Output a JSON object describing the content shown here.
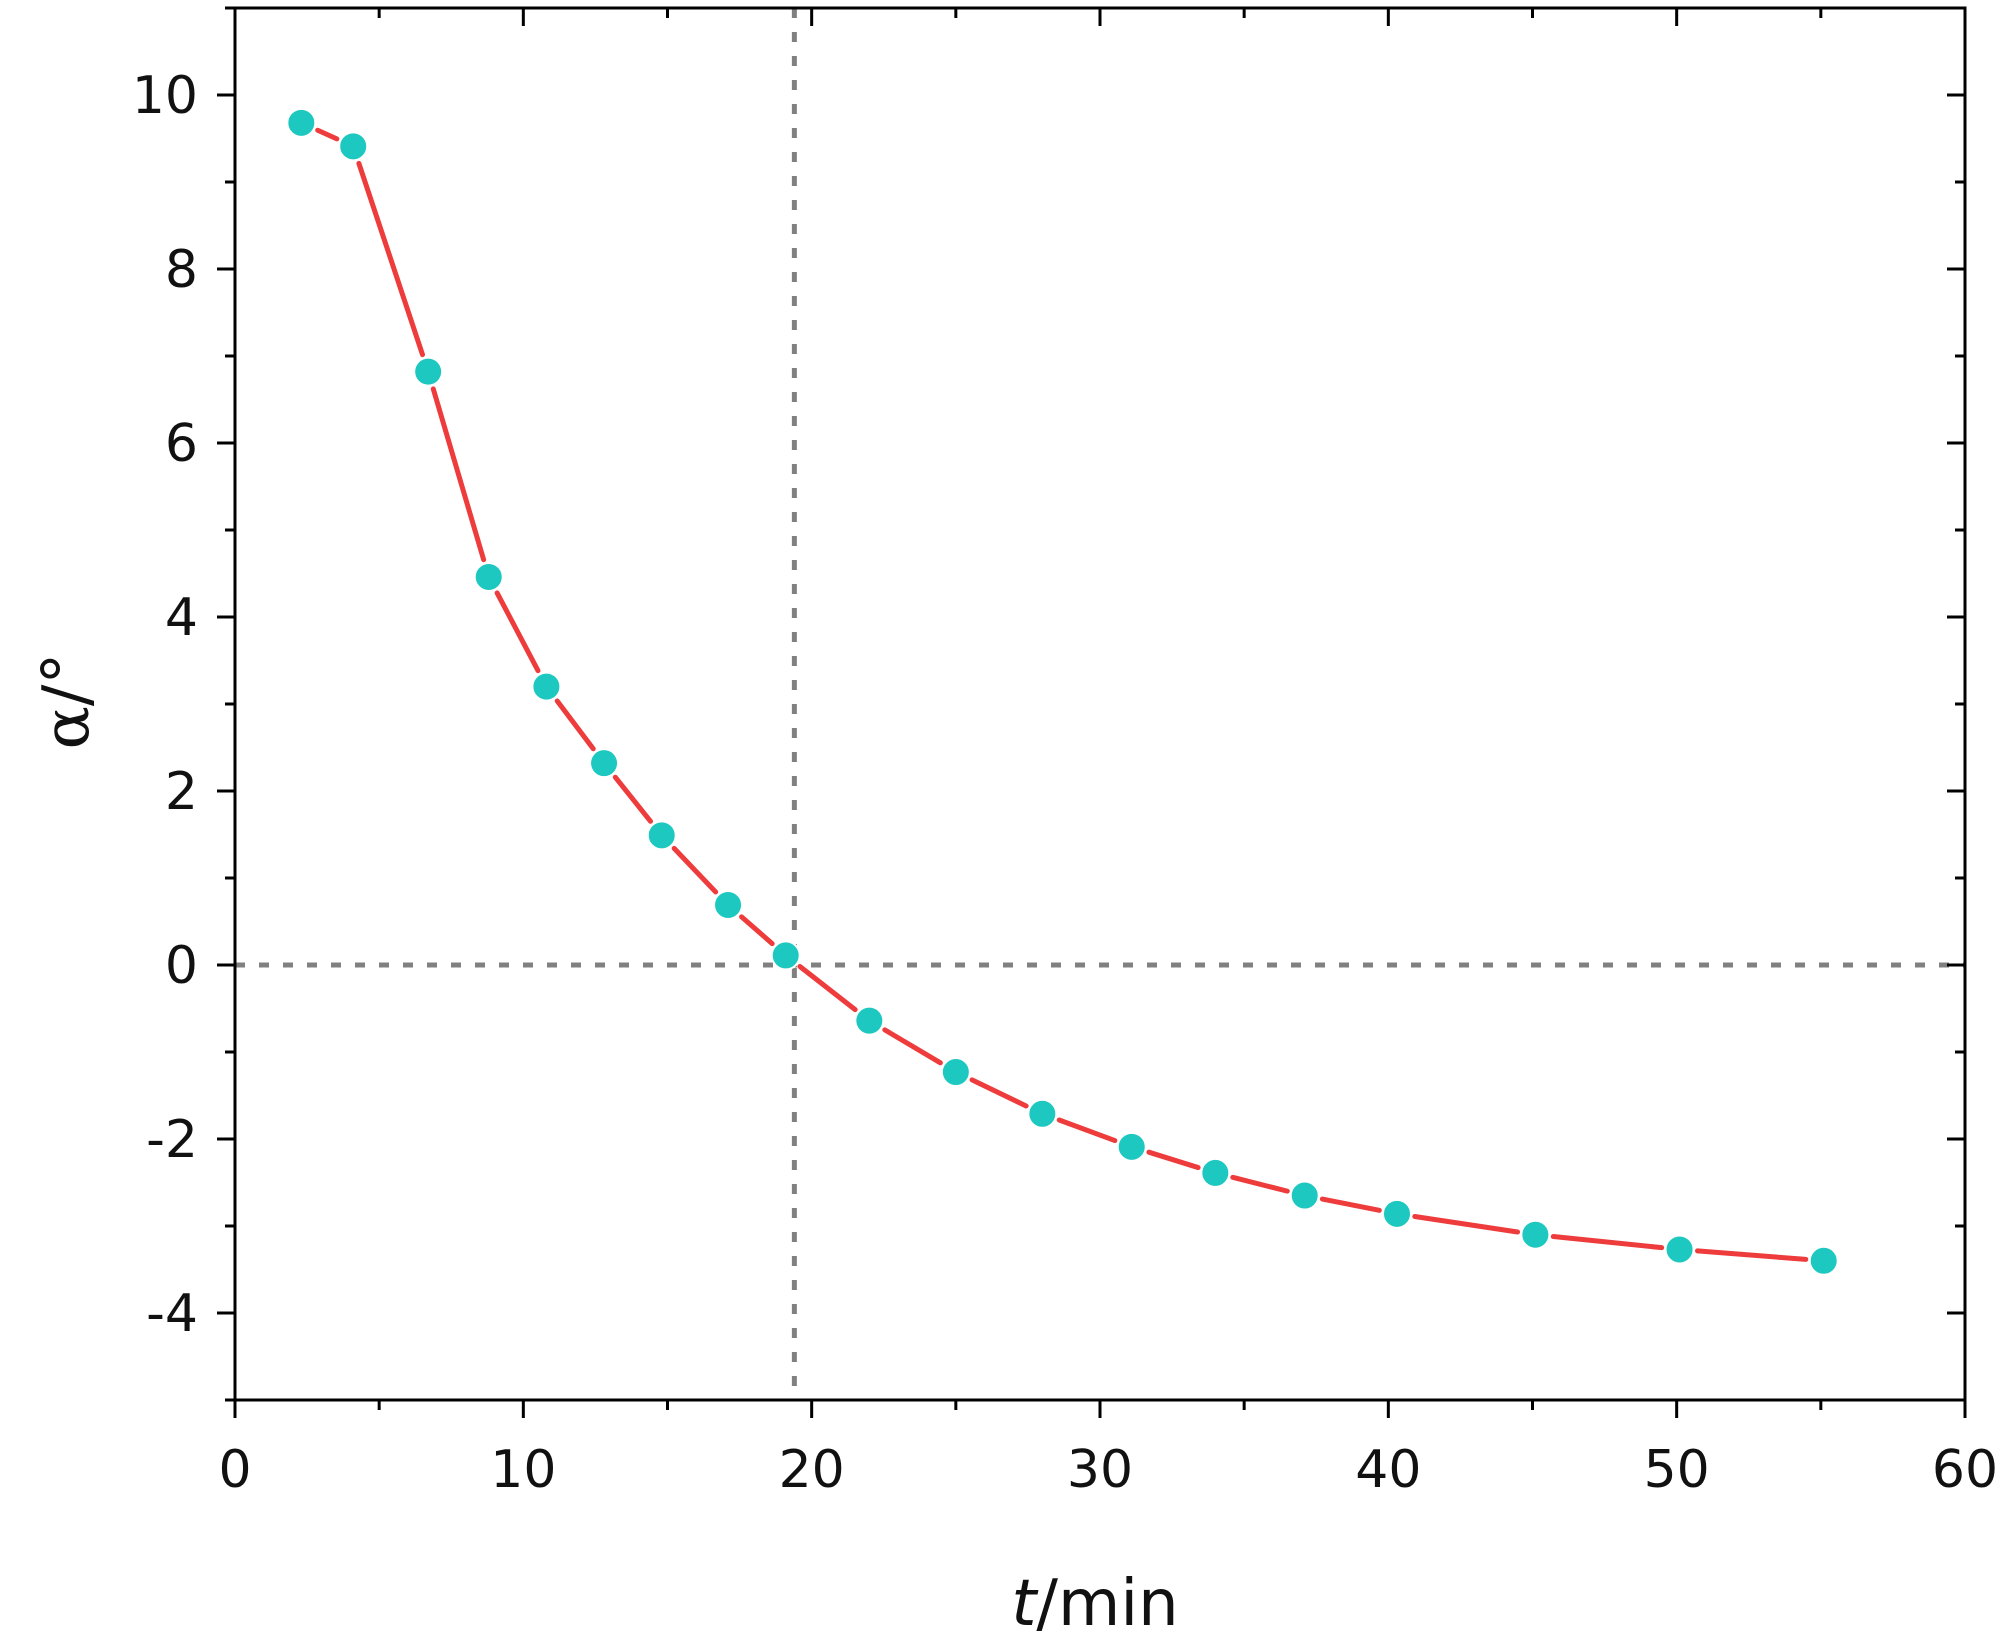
{
  "chart_data": {
    "type": "scatter",
    "xlabel": {
      "italic": "t",
      "rest": "/min"
    },
    "ylabel": {
      "symbol": "α",
      "rest": "/°"
    },
    "xlim": [
      0,
      60
    ],
    "ylim": [
      -5,
      11
    ],
    "x_ticks": [
      0,
      10,
      20,
      30,
      40,
      50,
      60
    ],
    "x_tick_labels": [
      "0",
      "10",
      "20",
      "30",
      "40",
      "50",
      "60"
    ],
    "y_ticks": [
      -4,
      -2,
      0,
      2,
      4,
      6,
      8,
      10
    ],
    "y_tick_labels": [
      "-4",
      "-2",
      "0",
      "2",
      "4",
      "6",
      "8",
      "10"
    ],
    "grid": false,
    "reference_lines": {
      "vertical_x": 19.4,
      "horizontal_y": 0
    },
    "colors": {
      "line": "#ee3b3b",
      "marker": "#1cc8c0",
      "reference": "#808080",
      "axis": "#000000"
    },
    "series": [
      {
        "x": [
          2.3,
          4.1,
          6.7,
          8.8,
          10.8,
          12.8,
          14.8,
          17.1,
          19.1,
          22.0,
          25.0,
          28.0,
          31.1,
          34.0,
          37.1,
          40.3,
          45.1,
          50.1,
          55.1
        ],
        "y": [
          9.68,
          9.41,
          6.82,
          4.46,
          3.2,
          2.32,
          1.49,
          0.69,
          0.11,
          -0.64,
          -1.23,
          -1.71,
          -2.09,
          -2.39,
          -2.65,
          -2.86,
          -3.1,
          -3.27,
          -3.4
        ]
      }
    ]
  }
}
